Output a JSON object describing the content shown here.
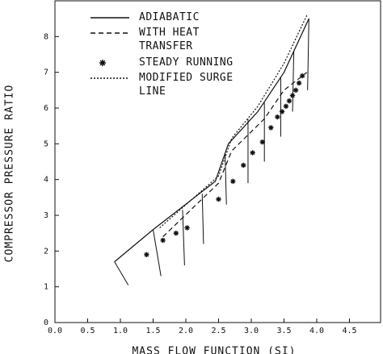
{
  "chart_data": {
    "type": "line",
    "x_label": "MASS FLOW FUNCTION (SI)",
    "y_label": "COMPRESSOR PRESSURE RATIO",
    "xlim": [
      0,
      5
    ],
    "ylim": [
      0,
      9
    ],
    "xticks": [
      {
        "value": 0,
        "label": "0.0"
      },
      0.5,
      {
        "value": 1,
        "label": "1.0"
      },
      1.5,
      {
        "value": 2,
        "label": "2.0"
      },
      2.5,
      {
        "value": 3,
        "label": "3.0"
      },
      3.5,
      {
        "value": 4,
        "label": "4.0"
      },
      4.5
    ],
    "yticks": [
      0,
      1,
      2,
      3,
      4,
      5,
      6,
      7,
      8
    ],
    "series": [
      {
        "name": "ADIABATIC",
        "style": "solid",
        "color": "#111111",
        "x": [
          0.91,
          1.5,
          2.45,
          2.65,
          3.1,
          3.5,
          3.88
        ],
        "y": [
          1.7,
          2.6,
          3.95,
          5.0,
          5.9,
          7.0,
          8.5
        ]
      },
      {
        "name": "WITH HEAT\nTRANSFER",
        "style": "dashed",
        "color": "#111111",
        "x": [
          1.65,
          2.5,
          2.7,
          3.2,
          3.5,
          3.85
        ],
        "y": [
          2.4,
          3.9,
          4.8,
          5.7,
          6.5,
          7.0
        ]
      },
      {
        "name": "STEADY RUNNING",
        "style": "markers",
        "color": "#111111",
        "x": [
          1.4,
          1.65,
          1.85,
          2.02,
          2.5,
          2.72,
          2.88,
          3.02,
          3.17,
          3.3,
          3.4,
          3.47,
          3.53,
          3.58,
          3.63,
          3.68,
          3.73,
          3.78
        ],
        "y": [
          1.9,
          2.3,
          2.5,
          2.65,
          3.45,
          3.95,
          4.4,
          4.75,
          5.05,
          5.45,
          5.75,
          5.9,
          6.05,
          6.2,
          6.35,
          6.5,
          6.7,
          6.9
        ]
      },
      {
        "name": "MODIFIED SURGE\nLINE",
        "style": "dotted",
        "color": "#111111",
        "x": [
          1.6,
          2.5,
          2.7,
          3.1,
          3.5,
          3.85
        ],
        "y": [
          2.65,
          4.1,
          5.15,
          6.05,
          7.25,
          8.6
        ]
      }
    ],
    "speed_lines": [
      {
        "x": [
          0.91,
          1.12
        ],
        "y": [
          1.7,
          1.05
        ]
      },
      {
        "x": [
          1.5,
          1.62
        ],
        "y": [
          2.6,
          1.3
        ]
      },
      {
        "x": [
          1.95,
          1.98
        ],
        "y": [
          3.15,
          1.6
        ]
      },
      {
        "x": [
          2.25,
          2.27
        ],
        "y": [
          3.6,
          2.2
        ]
      },
      {
        "x": [
          2.6,
          2.62
        ],
        "y": [
          4.7,
          3.3
        ]
      },
      {
        "x": [
          2.95,
          2.95
        ],
        "y": [
          5.7,
          3.9
        ]
      },
      {
        "x": [
          3.2,
          3.2
        ],
        "y": [
          6.15,
          4.5
        ]
      },
      {
        "x": [
          3.45,
          3.45
        ],
        "y": [
          6.85,
          5.2
        ]
      },
      {
        "x": [
          3.65,
          3.63
        ],
        "y": [
          7.6,
          5.9
        ]
      },
      {
        "x": [
          3.88,
          3.86
        ],
        "y": [
          8.5,
          6.5
        ]
      }
    ]
  }
}
